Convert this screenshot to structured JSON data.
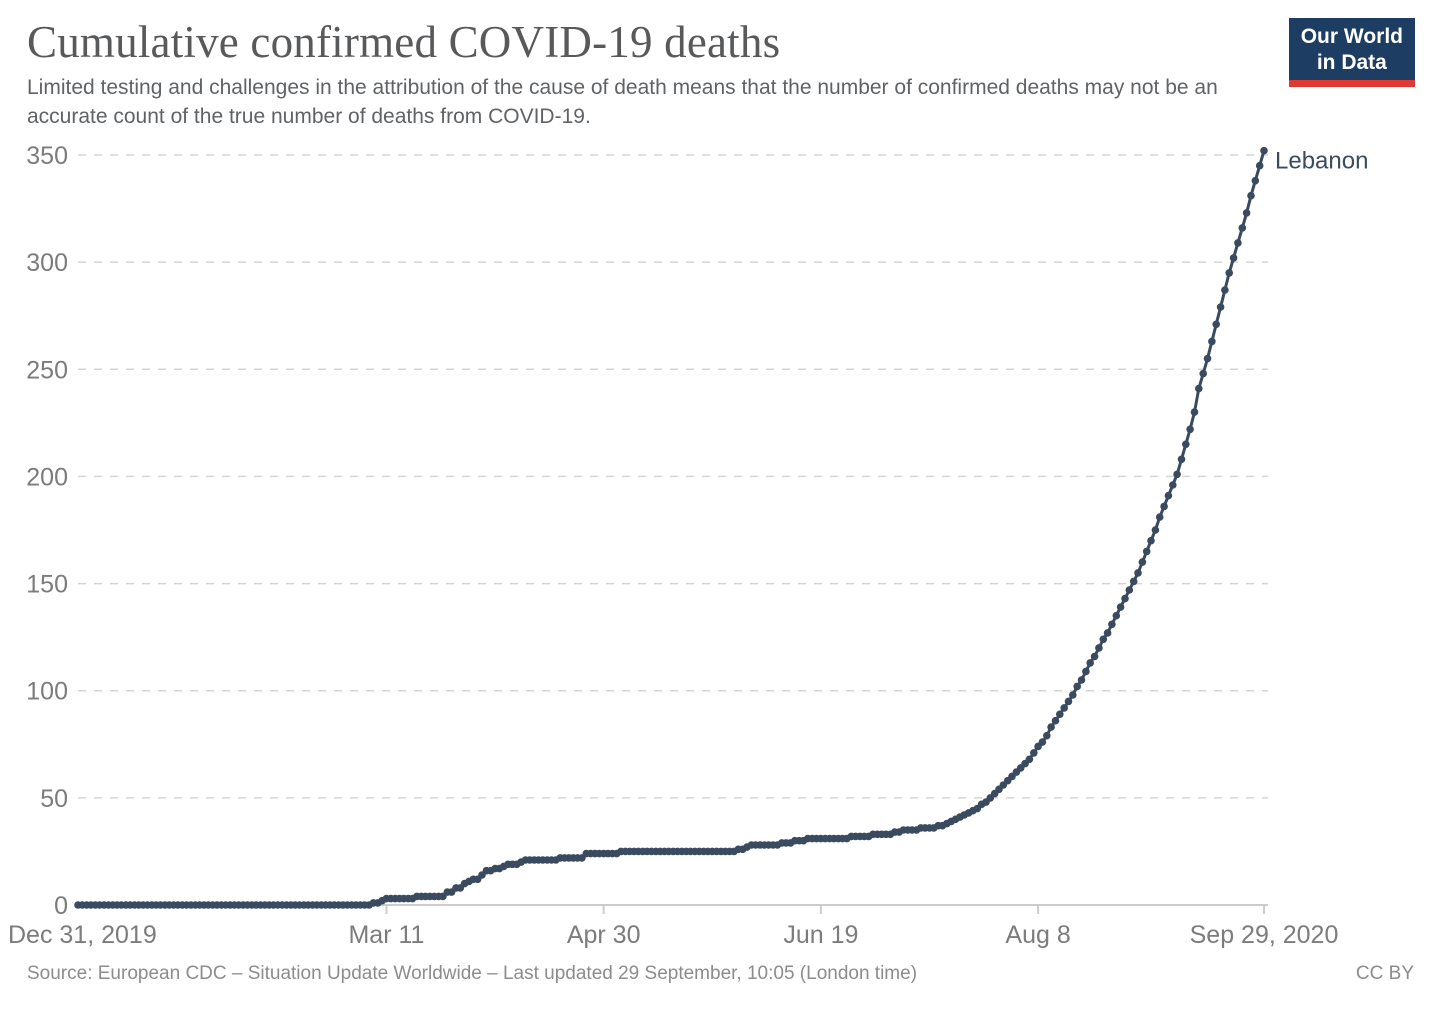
{
  "header": {
    "title": "Cumulative confirmed COVID-19 deaths",
    "subtitle": "Limited testing and challenges in the attribution of the cause of death means that the number of confirmed deaths may not be an accurate count of the true number of deaths from COVID-19."
  },
  "logo": {
    "line1": "Our World",
    "line2": "in Data",
    "bg_color": "#1d3d63",
    "accent_color": "#dc3a32"
  },
  "chart_data": {
    "type": "line",
    "title": "Cumulative confirmed COVID-19 deaths",
    "xlabel": "",
    "ylabel": "",
    "grid": true,
    "gridline_color": "#d5d5d5",
    "axis_line_color": "#cccccc",
    "tick_label_color": "#7c7c7c",
    "ylim": [
      0,
      350
    ],
    "y_ticks": [
      0,
      50,
      100,
      150,
      200,
      250,
      300,
      350
    ],
    "xlim_days": [
      0,
      273
    ],
    "x_ticks": [
      {
        "label": "Dec 31, 2019",
        "day": 0
      },
      {
        "label": "Mar 11",
        "day": 71
      },
      {
        "label": "Apr 30",
        "day": 121
      },
      {
        "label": "Jun 19",
        "day": 171
      },
      {
        "label": "Aug 8",
        "day": 221
      },
      {
        "label": "Sep 29, 2020",
        "day": 273
      }
    ],
    "legend_position": "end-of-line",
    "series": [
      {
        "name": "Lebanon",
        "color": "#3a4b60",
        "start_date": "2019-12-31",
        "end_date": "2020-09-29",
        "cadence": "daily",
        "values": [
          0,
          0,
          0,
          0,
          0,
          0,
          0,
          0,
          0,
          0,
          0,
          0,
          0,
          0,
          0,
          0,
          0,
          0,
          0,
          0,
          0,
          0,
          0,
          0,
          0,
          0,
          0,
          0,
          0,
          0,
          0,
          0,
          0,
          0,
          0,
          0,
          0,
          0,
          0,
          0,
          0,
          0,
          0,
          0,
          0,
          0,
          0,
          0,
          0,
          0,
          0,
          0,
          0,
          0,
          0,
          0,
          0,
          0,
          0,
          0,
          0,
          0,
          0,
          0,
          0,
          0,
          0,
          0,
          1,
          1,
          2,
          3,
          3,
          3,
          3,
          3,
          3,
          3,
          4,
          4,
          4,
          4,
          4,
          4,
          4,
          6,
          6,
          8,
          8,
          10,
          11,
          12,
          12,
          14,
          16,
          16,
          17,
          17,
          18,
          19,
          19,
          19,
          20,
          21,
          21,
          21,
          21,
          21,
          21,
          21,
          21,
          22,
          22,
          22,
          22,
          22,
          22,
          24,
          24,
          24,
          24,
          24,
          24,
          24,
          24,
          25,
          25,
          25,
          25,
          25,
          25,
          25,
          25,
          25,
          25,
          25,
          25,
          25,
          25,
          25,
          25,
          25,
          25,
          25,
          25,
          25,
          25,
          25,
          25,
          25,
          25,
          25,
          26,
          26,
          27,
          28,
          28,
          28,
          28,
          28,
          28,
          28,
          29,
          29,
          29,
          30,
          30,
          30,
          31,
          31,
          31,
          31,
          31,
          31,
          31,
          31,
          31,
          31,
          32,
          32,
          32,
          32,
          32,
          33,
          33,
          33,
          33,
          33,
          34,
          34,
          35,
          35,
          35,
          35,
          36,
          36,
          36,
          36,
          37,
          37,
          38,
          39,
          40,
          41,
          42,
          43,
          44,
          45,
          47,
          48,
          50,
          52,
          54,
          56,
          58,
          60,
          62,
          64,
          66,
          68,
          71,
          74,
          76,
          79,
          83,
          86,
          89,
          92,
          95,
          98,
          102,
          105,
          109,
          113,
          116,
          120,
          124,
          127,
          131,
          135,
          139,
          143,
          147,
          151,
          155,
          160,
          165,
          170,
          175,
          181,
          186,
          191,
          196,
          201,
          208,
          215,
          222,
          230,
          241,
          248,
          255,
          263,
          271,
          279,
          287,
          295,
          302,
          309,
          316,
          323,
          331,
          338,
          345,
          352
        ]
      }
    ]
  },
  "footer": {
    "source": "Source: European CDC – Situation Update Worldwide – Last updated 29 September, 10:05 (London time)",
    "license": "CC BY"
  }
}
